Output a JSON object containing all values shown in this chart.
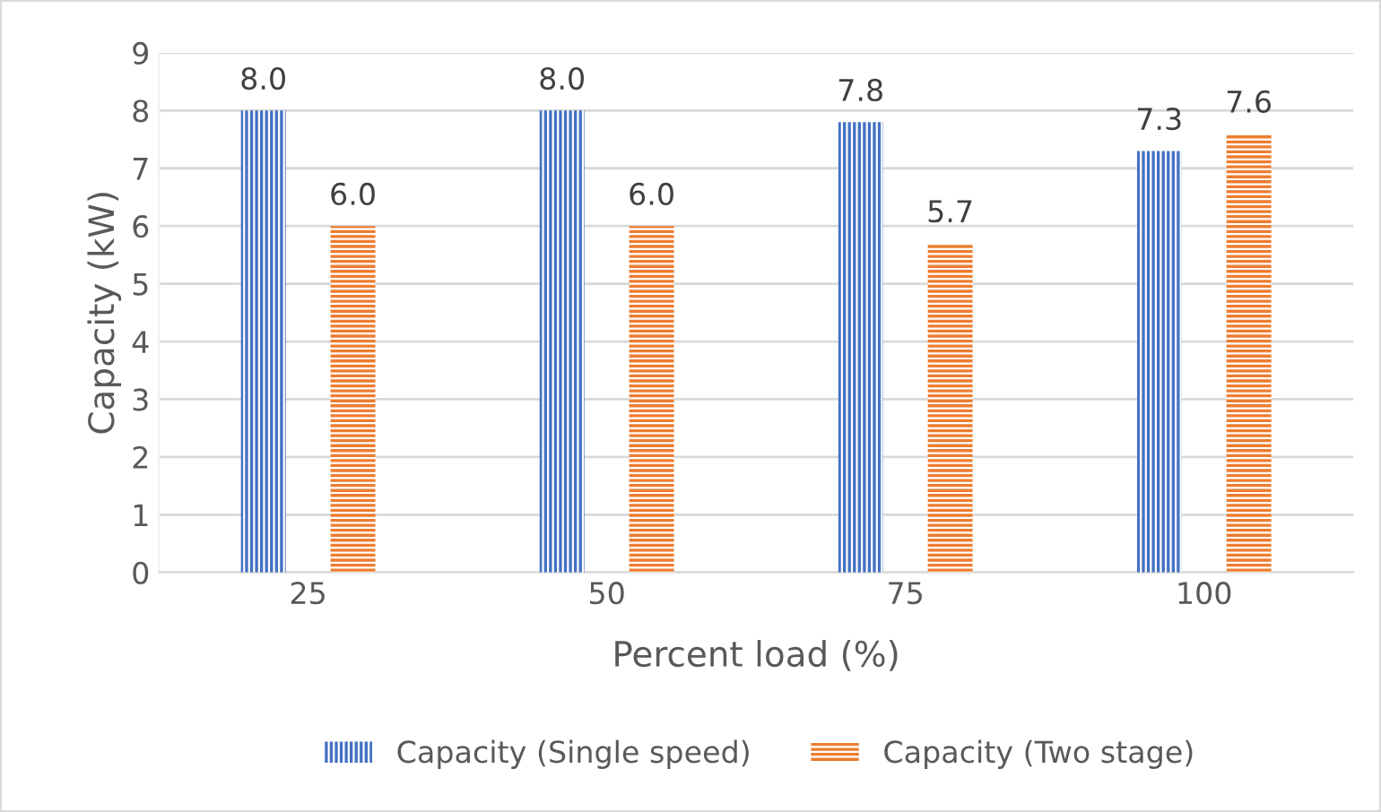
{
  "chart_data": {
    "type": "bar",
    "xlabel": "Percent load (%)",
    "ylabel": "Capacity (kW)",
    "categories": [
      "25",
      "50",
      "75",
      "100"
    ],
    "series": [
      {
        "name": "Capacity (Single speed)",
        "color": "#4472c4",
        "values": [
          8.0,
          8.0,
          7.8,
          7.3
        ],
        "value_labels": [
          "8.0",
          "8.0",
          "7.8",
          "7.3"
        ]
      },
      {
        "name": "Capacity (Two stage)",
        "color": "#ed7d31",
        "values": [
          6.0,
          6.0,
          5.7,
          7.6
        ],
        "value_labels": [
          "6.0",
          "6.0",
          "5.7",
          "7.6"
        ]
      }
    ],
    "ylim": [
      0,
      9
    ],
    "yticks": [
      0,
      1,
      2,
      3,
      4,
      5,
      6,
      7,
      8,
      9
    ],
    "grid": "y",
    "legend": "bottom"
  }
}
